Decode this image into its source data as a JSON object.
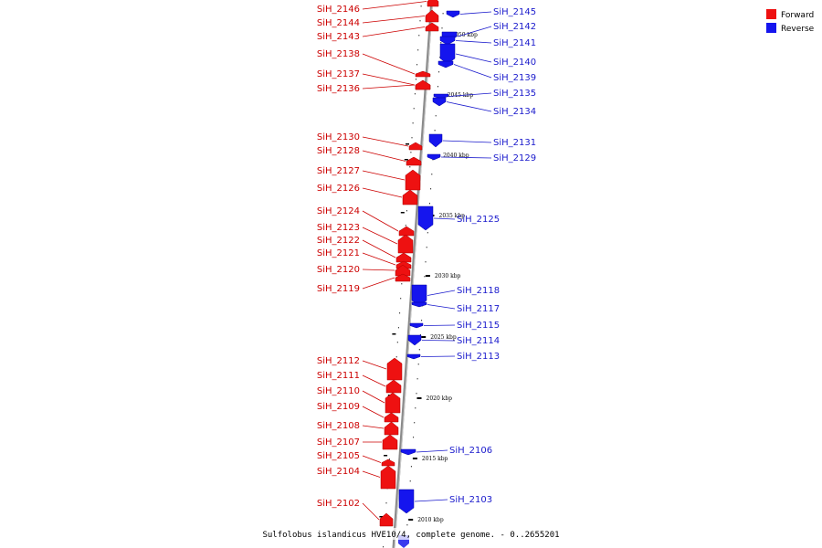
{
  "colors": {
    "forward": "#ee1111",
    "forward_dark": "#aa0000",
    "forward_label": "#cc0000",
    "reverse": "#1515ee",
    "reverse_dark": "#0000a0",
    "reverse_label": "#1a1acc",
    "backbone": "#888888"
  },
  "legend": {
    "forward_label": "Forward",
    "reverse_label": "Reverse"
  },
  "caption": "Sulfolobus islandicus HVE10/4, complete genome. - 0..2655201",
  "ticks": [
    {
      "label": "2050 kbp"
    },
    {
      "label": "2045 kbp"
    },
    {
      "label": "2040 kbp"
    },
    {
      "label": "2035 kbp"
    },
    {
      "label": "2030 kbp"
    },
    {
      "label": "2025 kbp"
    },
    {
      "label": "2020 kbp"
    },
    {
      "label": "2015 kbp"
    },
    {
      "label": "2010 kbp"
    }
  ],
  "forward_genes": [
    {
      "name": "SiH_2146"
    },
    {
      "name": "SiH_2144"
    },
    {
      "name": "SiH_2143"
    },
    {
      "name": "SiH_2138"
    },
    {
      "name": "SiH_2137"
    },
    {
      "name": "SiH_2136"
    },
    {
      "name": "SiH_2130"
    },
    {
      "name": "SiH_2128"
    },
    {
      "name": "SiH_2127"
    },
    {
      "name": "SiH_2126"
    },
    {
      "name": "SiH_2124"
    },
    {
      "name": "SiH_2123"
    },
    {
      "name": "SiH_2122"
    },
    {
      "name": "SiH_2121"
    },
    {
      "name": "SiH_2120"
    },
    {
      "name": "SiH_2119"
    },
    {
      "name": "SiH_2112"
    },
    {
      "name": "SiH_2111"
    },
    {
      "name": "SiH_2110"
    },
    {
      "name": "SiH_2109"
    },
    {
      "name": "SiH_2108"
    },
    {
      "name": "SiH_2107"
    },
    {
      "name": "SiH_2105"
    },
    {
      "name": "SiH_2104"
    },
    {
      "name": "SiH_2102"
    }
  ],
  "reverse_genes": [
    {
      "name": "SiH_2145"
    },
    {
      "name": "SiH_2142"
    },
    {
      "name": "SiH_2141"
    },
    {
      "name": "SiH_2140"
    },
    {
      "name": "SiH_2139"
    },
    {
      "name": "SiH_2135"
    },
    {
      "name": "SiH_2134"
    },
    {
      "name": "SiH_2131"
    },
    {
      "name": "SiH_2129"
    },
    {
      "name": "SiH_2125"
    },
    {
      "name": "SiH_2118"
    },
    {
      "name": "SiH_2117"
    },
    {
      "name": "SiH_2115"
    },
    {
      "name": "SiH_2114"
    },
    {
      "name": "SiH_2113"
    },
    {
      "name": "SiH_2106"
    },
    {
      "name": "SiH_2103"
    }
  ]
}
